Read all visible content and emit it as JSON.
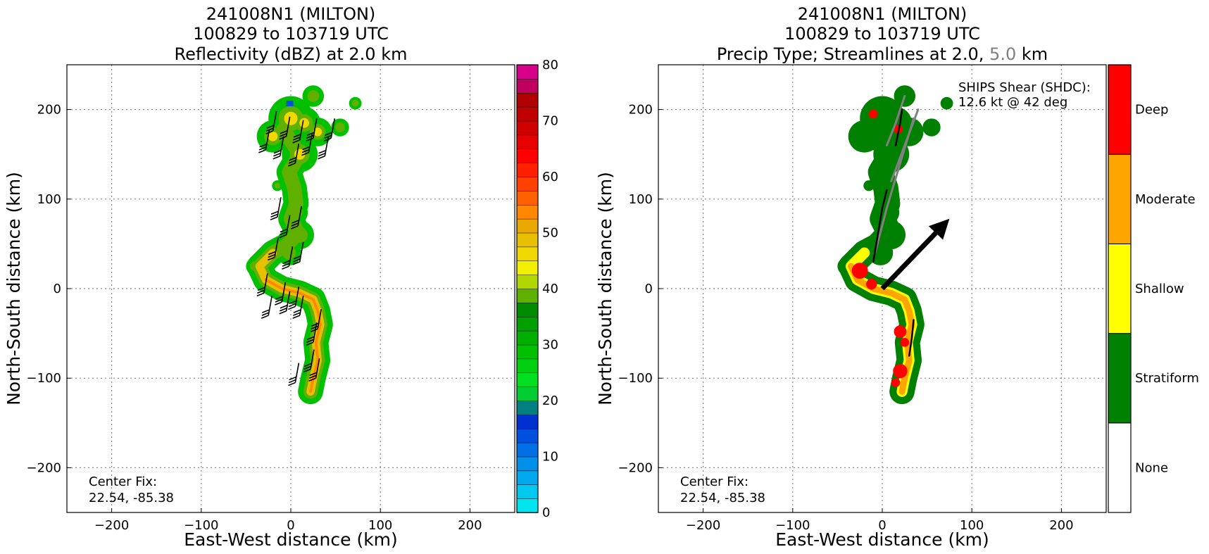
{
  "chart_data": [
    {
      "type": "heatmap",
      "title_lines": [
        "241008N1 (MILTON)",
        "100829 to 103719 UTC",
        "Reflectivity (dBZ) at 2.0 km"
      ],
      "xlabel": "East-West distance (km)",
      "ylabel": "North-South distance (km)",
      "xlim": [
        -250,
        250
      ],
      "ylim": [
        -250,
        250
      ],
      "xticks": [
        -200,
        -100,
        0,
        100,
        200
      ],
      "yticks": [
        -200,
        -100,
        0,
        100,
        200
      ],
      "grid": true,
      "annotation": [
        "Center Fix:",
        "22.54, -85.38"
      ],
      "colorbar": {
        "min": 0,
        "max": 80,
        "step": 2.5,
        "ticks": [
          0,
          10,
          20,
          30,
          40,
          50,
          60,
          70,
          80
        ],
        "colors": [
          "#00e5ee",
          "#00c8f0",
          "#00a8f0",
          "#0090ea",
          "#0070e6",
          "#0050e0",
          "#0030d0",
          "#008080",
          "#00cc33",
          "#00e020",
          "#00d010",
          "#00c000",
          "#00b000",
          "#00a000",
          "#008c00",
          "#60b000",
          "#b0d800",
          "#f0f000",
          "#f0d800",
          "#e8c000",
          "#e8a800",
          "#ff8800",
          "#ff6000",
          "#ff4000",
          "#ff2000",
          "#ff0000",
          "#e80000",
          "#d00000",
          "#c00000",
          "#b00000",
          "#c00060",
          "#d8008a",
          "#e000d0",
          "#e820e8",
          "#c050d8",
          "#9058c0",
          "#6a3a90",
          "#402050",
          "#000000"
        ]
      },
      "echo_path": [
        [
          -3,
          195
        ],
        [
          5,
          188
        ],
        [
          -8,
          178
        ],
        [
          0,
          165
        ],
        [
          10,
          150
        ],
        [
          -2,
          130
        ],
        [
          4,
          112
        ],
        [
          6,
          95
        ],
        [
          0,
          78
        ],
        [
          8,
          62
        ],
        [
          -5,
          48
        ],
        [
          -20,
          40
        ],
        [
          -35,
          25
        ],
        [
          -28,
          10
        ],
        [
          -10,
          0
        ],
        [
          10,
          -5
        ],
        [
          25,
          -12
        ],
        [
          30,
          -25
        ],
        [
          33,
          -40
        ],
        [
          28,
          -60
        ],
        [
          30,
          -80
        ],
        [
          25,
          -100
        ],
        [
          22,
          -115
        ]
      ],
      "echo_blobs": [
        [
          0,
          190,
          25
        ],
        [
          15,
          185,
          18
        ],
        [
          -20,
          170,
          18
        ],
        [
          30,
          175,
          16
        ],
        [
          10,
          150,
          20
        ],
        [
          25,
          215,
          12
        ],
        [
          72,
          207,
          7
        ],
        [
          -15,
          115,
          6
        ],
        [
          5,
          85,
          14
        ],
        [
          10,
          60,
          16
        ],
        [
          -2,
          40,
          14
        ],
        [
          -40,
          25,
          10
        ],
        [
          55,
          180,
          10
        ]
      ],
      "barbs": [
        [
          -20,
          176
        ],
        [
          -5,
          170
        ],
        [
          10,
          166
        ],
        [
          25,
          168
        ],
        [
          45,
          168
        ],
        [
          -28,
          155
        ],
        [
          -12,
          148
        ],
        [
          5,
          140
        ],
        [
          20,
          152
        ],
        [
          38,
          148
        ],
        [
          -15,
          80
        ],
        [
          -5,
          60
        ],
        [
          8,
          70
        ],
        [
          -18,
          35
        ],
        [
          -2,
          25
        ],
        [
          10,
          30
        ],
        [
          -30,
          -5
        ],
        [
          -10,
          -15
        ],
        [
          5,
          -20
        ],
        [
          -25,
          -30
        ],
        [
          -5,
          -25
        ],
        [
          10,
          -30
        ],
        [
          30,
          -45
        ],
        [
          25,
          -60
        ],
        [
          22,
          -90
        ],
        [
          5,
          -105
        ],
        [
          28,
          -100
        ]
      ]
    },
    {
      "type": "heatmap",
      "title_lines": [
        "241008N1 (MILTON)",
        "100829 to 103719 UTC"
      ],
      "title_line3": {
        "pre": "Precip Type; Streamlines at 2.0,",
        "gray": "5.0",
        "post": "km"
      },
      "xlabel": "East-West distance (km)",
      "ylabel": "North-South distance (km)",
      "xlim": [
        -250,
        250
      ],
      "ylim": [
        -250,
        250
      ],
      "xticks": [
        -200,
        -100,
        0,
        100,
        200
      ],
      "yticks": [
        -200,
        -100,
        0,
        100,
        200
      ],
      "grid": true,
      "annotation": [
        "Center Fix:",
        "22.54, -85.38"
      ],
      "shear_text": [
        "SHIPS Shear (SHDC):",
        "12.6 kt @ 42 deg"
      ],
      "shear_vector": {
        "speed_kt": 12.6,
        "direction_deg": 42,
        "from": [
          0,
          0
        ],
        "to": [
          75,
          78
        ]
      },
      "categories": [
        {
          "name": "None",
          "color": "#ffffff"
        },
        {
          "name": "Stratiform",
          "color": "#008000"
        },
        {
          "name": "Shallow",
          "color": "#ffff00"
        },
        {
          "name": "Moderate",
          "color": "#ffa500"
        },
        {
          "name": "Deep",
          "color": "#ff0000"
        }
      ],
      "deep_cells": [
        [
          -25,
          20,
          9
        ],
        [
          -12,
          5,
          6
        ],
        [
          20,
          -48,
          7
        ],
        [
          25,
          -60,
          5
        ],
        [
          20,
          -92,
          8
        ],
        [
          15,
          -105,
          5
        ],
        [
          -10,
          195,
          5
        ],
        [
          18,
          178,
          5
        ]
      ],
      "streamlines_2km": [
        [
          [
            -10,
            30
          ],
          [
            -5,
            60
          ],
          [
            0,
            90
          ],
          [
            5,
            110
          ]
        ],
        [
          [
            15,
            160
          ],
          [
            20,
            185
          ],
          [
            22,
            200
          ]
        ],
        [
          [
            30,
            -75
          ],
          [
            33,
            -55
          ],
          [
            35,
            -35
          ]
        ]
      ],
      "streamlines_5km": [
        [
          [
            -8,
            40
          ],
          [
            5,
            90
          ],
          [
            20,
            140
          ],
          [
            35,
            190
          ]
        ],
        [
          [
            5,
            160
          ],
          [
            15,
            185
          ],
          [
            25,
            215
          ]
        ],
        [
          [
            10,
            120
          ],
          [
            25,
            160
          ],
          [
            40,
            200
          ]
        ]
      ]
    }
  ]
}
